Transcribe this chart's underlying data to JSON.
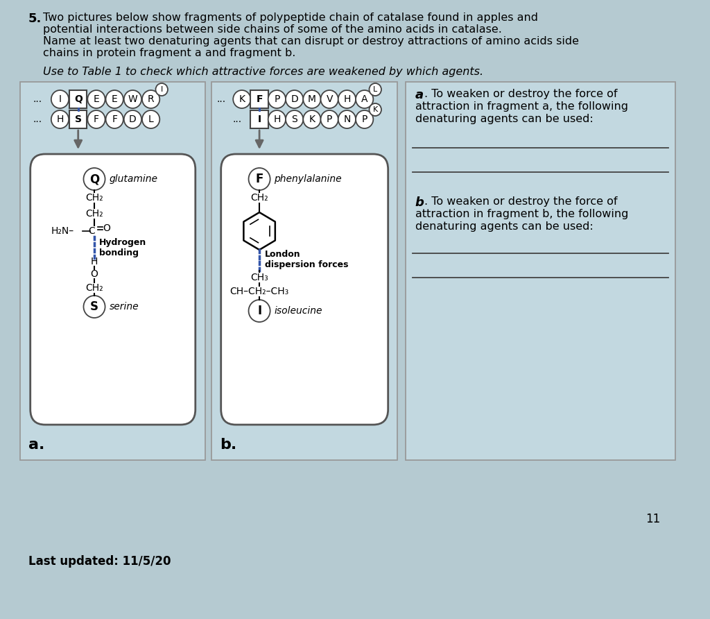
{
  "bg_color": "#b5cad1",
  "title_number": "5.",
  "title_line1": "Two pictures below show fragments of polypeptide chain of catalase found in apples and",
  "title_line2": "potential interactions between side chains of some of the amino acids in catalase.",
  "title_line3": "Name at least two denaturing agents that can disrupt or destroy attractions of amino acids side",
  "title_line4": "chains in protein fragment a and fragment b.",
  "italic_line": "Use to Table 1 to check which attractive forces are weakened by which agents.",
  "footer_left": "Last updated: 11/5/20",
  "page_number": "11",
  "box_bg": "#c2d8e0",
  "hydrogen_bond_color": "#3355aa",
  "london_color": "#3355aa"
}
